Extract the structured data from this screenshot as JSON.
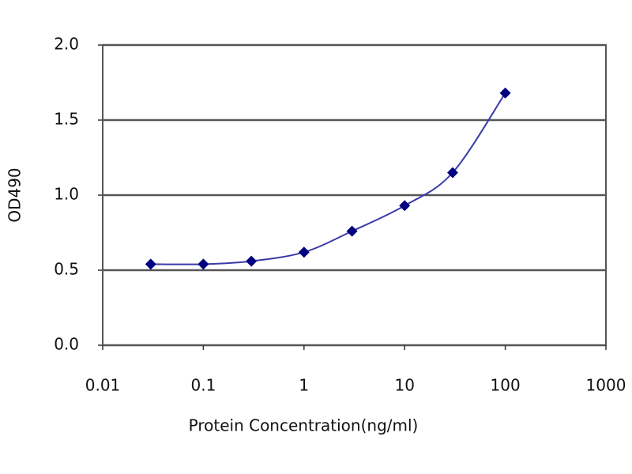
{
  "chart_data": {
    "type": "line",
    "x_label": "Protein Concentration(ng/ml)",
    "y_label": "OD490",
    "x": [
      0.03,
      0.1,
      0.3,
      1,
      3,
      10,
      30,
      100
    ],
    "series": [
      {
        "color": "#000080",
        "values": [
          0.54,
          0.54,
          0.56,
          0.62,
          0.76,
          0.93,
          1.15,
          1.68
        ]
      }
    ],
    "xscale": "log",
    "xlim": [
      0.01,
      1000
    ],
    "xticks": [
      0.01,
      0.1,
      1,
      10,
      100,
      1000
    ],
    "ylim": [
      0,
      2
    ],
    "yticks": [
      {
        "value": 0,
        "label": "0.0"
      },
      0.5,
      {
        "value": 1,
        "label": "1.0"
      },
      1.5,
      {
        "value": 2,
        "label": "2.0"
      }
    ],
    "grid": true
  }
}
